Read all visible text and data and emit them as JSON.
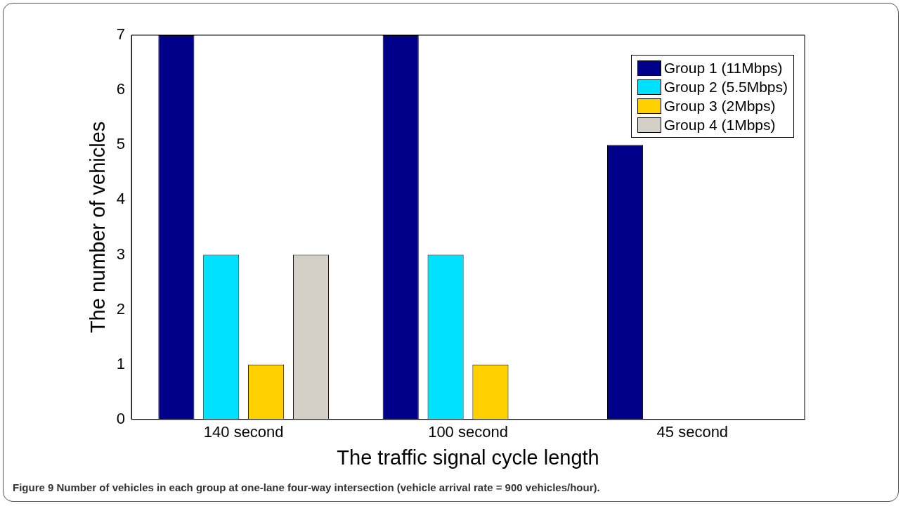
{
  "chart_data": {
    "type": "bar",
    "xlabel": "The traffic signal cycle length",
    "ylabel": "The number of vehicles",
    "categories": [
      "140 second",
      "100 second",
      "45 second"
    ],
    "series": [
      {
        "name": "Group 1 (11Mbps)",
        "color": "#00008b",
        "values": [
          7,
          7,
          5
        ]
      },
      {
        "name": "Group 2 (5.5Mbps)",
        "color": "#00e0ff",
        "values": [
          3,
          3,
          0
        ]
      },
      {
        "name": "Group 3 (2Mbps)",
        "color": "#ffd000",
        "values": [
          1,
          1,
          0
        ]
      },
      {
        "name": "Group 4 (1Mbps)",
        "color": "#d4d0c8",
        "values": [
          3,
          0,
          0
        ]
      }
    ],
    "ylim": [
      0,
      7
    ],
    "yticks": [
      0,
      1,
      2,
      3,
      4,
      5,
      6,
      7
    ],
    "grid": false,
    "legend": "top right",
    "annotations": [
      "Figure 9 Number of vehicles in each group at one-lane four-way intersection (vehicle arrival rate = 900 vehicles/hour)."
    ]
  }
}
